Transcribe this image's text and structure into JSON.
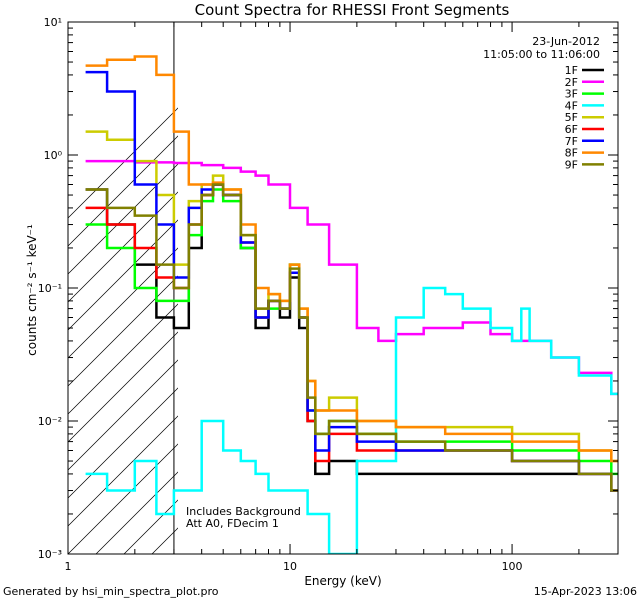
{
  "chart_data": {
    "type": "line",
    "title": "Count Spectra for RHESSI Front Segments",
    "xlabel": "Energy (keV)",
    "ylabel": "counts cm⁻² s⁻¹ keV⁻¹",
    "xscale": "log",
    "yscale": "log",
    "xlim": [
      1,
      300
    ],
    "ylim": [
      0.001,
      10
    ],
    "x_ticks": [
      "1",
      "10",
      "100"
    ],
    "y_ticks": [
      "10⁻³",
      "10⁻²",
      "10⁻¹",
      "10⁰",
      "10¹"
    ],
    "date": "23-Jun-2012",
    "time_range": "11:05:00 to 11:06:00",
    "legend_position": "top-right",
    "threshold_energy": 3,
    "annotations": [
      "Includes Background",
      "Att A0, FDecim 1"
    ],
    "footer_left": "Generated by hsi_min_spectra_plot.pro",
    "footer_right": "15-Apr-2023 13:06",
    "series": [
      {
        "name": "1F",
        "color": "#000000",
        "x": [
          1.2,
          1.5,
          2,
          2.5,
          3,
          3.5,
          4,
          4.5,
          5,
          6,
          7,
          8,
          9,
          10,
          11,
          12,
          13,
          15,
          20,
          30,
          50,
          100,
          200,
          280
        ],
        "y": [
          0.55,
          0.3,
          0.15,
          0.06,
          0.05,
          0.2,
          0.5,
          0.6,
          0.5,
          0.2,
          0.05,
          0.08,
          0.06,
          0.12,
          0.05,
          0.01,
          0.004,
          0.005,
          0.004,
          0.004,
          0.004,
          0.004,
          0.004,
          0.003
        ]
      },
      {
        "name": "2F",
        "color": "#ff00ff",
        "x": [
          1.2,
          2,
          3,
          4,
          5,
          6,
          7,
          8,
          10,
          12,
          15,
          20,
          25,
          30,
          40,
          60,
          80,
          100,
          150,
          200,
          280
        ],
        "y": [
          0.9,
          0.88,
          0.87,
          0.84,
          0.8,
          0.75,
          0.7,
          0.6,
          0.4,
          0.3,
          0.15,
          0.05,
          0.04,
          0.045,
          0.05,
          0.055,
          0.045,
          0.04,
          0.03,
          0.023,
          0.016
        ]
      },
      {
        "name": "3F",
        "color": "#00ff00",
        "x": [
          1.2,
          1.5,
          2,
          2.5,
          3,
          3.5,
          4,
          4.5,
          5,
          6,
          7,
          8,
          9,
          10,
          11,
          12,
          13,
          15,
          20,
          30,
          50,
          100,
          200,
          280
        ],
        "y": [
          0.3,
          0.2,
          0.1,
          0.08,
          0.08,
          0.25,
          0.45,
          0.55,
          0.45,
          0.2,
          0.06,
          0.07,
          0.07,
          0.15,
          0.06,
          0.012,
          0.008,
          0.01,
          0.008,
          0.007,
          0.007,
          0.006,
          0.005,
          0.004
        ]
      },
      {
        "name": "4F",
        "color": "#00ffff",
        "x": [
          1.2,
          1.5,
          2,
          2.5,
          3,
          4,
          5,
          6,
          7,
          8,
          10,
          12,
          15,
          20,
          30,
          40,
          50,
          60,
          80,
          100,
          110,
          120,
          150,
          200,
          280
        ],
        "y": [
          0.004,
          0.003,
          0.005,
          0.002,
          0.003,
          0.01,
          0.006,
          0.005,
          0.004,
          0.003,
          0.003,
          0.002,
          0.001,
          0.005,
          0.06,
          0.1,
          0.09,
          0.07,
          0.05,
          0.04,
          0.07,
          0.04,
          0.03,
          0.022,
          0.016
        ]
      },
      {
        "name": "5F",
        "color": "#cccc00",
        "x": [
          1.2,
          1.5,
          2,
          2.5,
          3,
          3.5,
          4,
          4.5,
          5,
          6,
          7,
          8,
          9,
          10,
          11,
          12,
          13,
          15,
          20,
          30,
          50,
          100,
          200,
          280
        ],
        "y": [
          1.5,
          1.3,
          0.9,
          0.5,
          0.15,
          0.45,
          0.6,
          0.7,
          0.55,
          0.25,
          0.07,
          0.09,
          0.08,
          0.15,
          0.07,
          0.02,
          0.012,
          0.015,
          0.01,
          0.009,
          0.009,
          0.008,
          0.006,
          0.005
        ]
      },
      {
        "name": "6F",
        "color": "#ff0000",
        "x": [
          1.2,
          1.5,
          2,
          2.5,
          3,
          3.5,
          4,
          4.5,
          5,
          6,
          7,
          8,
          9,
          10,
          11,
          12,
          13,
          15,
          20,
          30,
          50,
          100,
          200,
          280
        ],
        "y": [
          0.4,
          0.3,
          0.2,
          0.12,
          0.1,
          0.3,
          0.5,
          0.6,
          0.5,
          0.22,
          0.06,
          0.08,
          0.07,
          0.13,
          0.06,
          0.01,
          0.005,
          0.008,
          0.006,
          0.006,
          0.006,
          0.005,
          0.004,
          0.003
        ]
      },
      {
        "name": "7F",
        "color": "#0000ff",
        "x": [
          1.2,
          1.5,
          2,
          2.5,
          3,
          3.5,
          4,
          4.5,
          5,
          6,
          7,
          8,
          9,
          10,
          11,
          12,
          13,
          15,
          20,
          30,
          50,
          100,
          200,
          280
        ],
        "y": [
          4.2,
          3.0,
          0.6,
          0.3,
          0.12,
          0.4,
          0.55,
          0.6,
          0.5,
          0.22,
          0.06,
          0.08,
          0.07,
          0.13,
          0.06,
          0.012,
          0.006,
          0.009,
          0.007,
          0.006,
          0.006,
          0.005,
          0.004,
          0.003
        ]
      },
      {
        "name": "8F",
        "color": "#ff8800",
        "x": [
          1.2,
          1.5,
          2,
          2.5,
          3,
          3.5,
          4,
          4.5,
          5,
          6,
          7,
          8,
          9,
          10,
          11,
          12,
          13,
          15,
          20,
          30,
          50,
          100,
          200,
          280
        ],
        "y": [
          4.7,
          5.2,
          5.5,
          4.0,
          1.5,
          0.6,
          0.6,
          0.62,
          0.55,
          0.3,
          0.1,
          0.09,
          0.08,
          0.15,
          0.07,
          0.02,
          0.012,
          0.012,
          0.01,
          0.009,
          0.008,
          0.007,
          0.006,
          0.005
        ]
      },
      {
        "name": "9F",
        "color": "#808000",
        "x": [
          1.2,
          1.5,
          2,
          2.5,
          3,
          3.5,
          4,
          4.5,
          5,
          6,
          7,
          8,
          9,
          10,
          11,
          12,
          13,
          15,
          20,
          30,
          50,
          100,
          200,
          280
        ],
        "y": [
          0.55,
          0.4,
          0.35,
          0.15,
          0.1,
          0.3,
          0.5,
          0.6,
          0.5,
          0.25,
          0.07,
          0.08,
          0.07,
          0.14,
          0.06,
          0.015,
          0.008,
          0.01,
          0.008,
          0.007,
          0.006,
          0.005,
          0.004,
          0.003
        ]
      }
    ]
  }
}
